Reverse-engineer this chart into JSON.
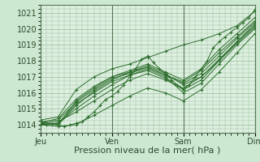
{
  "bg_color": "#cce8d0",
  "plot_bg_color": "#ddf0e0",
  "grid_color": "#99bb99",
  "line_color": "#2d6e2d",
  "marker_color": "#2d6e2d",
  "xlabel": "Pression niveau de la mer( hPa )",
  "xlabel_fontsize": 8,
  "tick_fontsize": 7,
  "xlim": [
    0,
    72
  ],
  "ylim": [
    1013.5,
    1021.5
  ],
  "yticks": [
    1014,
    1015,
    1016,
    1017,
    1018,
    1019,
    1020,
    1021
  ],
  "xtick_labels": [
    "Jeu",
    "Ven",
    "Sam",
    "Dim"
  ],
  "xtick_positions": [
    0,
    24,
    48,
    72
  ],
  "vline_positions": [
    0,
    24,
    48,
    72
  ],
  "series": [
    [
      0,
      1014.1,
      2,
      1014.0,
      4,
      1014.05,
      6,
      1014.0,
      8,
      1013.9,
      10,
      1014.0,
      12,
      1014.1,
      14,
      1014.2,
      16,
      1014.5,
      18,
      1014.8,
      20,
      1015.2,
      22,
      1015.6,
      24,
      1015.8,
      26,
      1016.1,
      28,
      1016.5,
      30,
      1017.0,
      32,
      1017.5,
      34,
      1018.1,
      36,
      1018.3,
      38,
      1017.9,
      40,
      1017.5,
      42,
      1017.2,
      44,
      1016.8,
      46,
      1016.5,
      48,
      1016.2,
      50,
      1016.5,
      52,
      1017.0,
      54,
      1017.5,
      56,
      1018.0,
      58,
      1018.8,
      60,
      1019.2,
      62,
      1019.5,
      64,
      1019.8,
      66,
      1020.1,
      68,
      1020.4,
      70,
      1020.7,
      72,
      1021.2
    ],
    [
      0,
      1014.0,
      6,
      1013.9,
      12,
      1014.0,
      18,
      1014.6,
      24,
      1015.2,
      30,
      1015.8,
      36,
      1016.3,
      42,
      1016.0,
      48,
      1015.5,
      54,
      1016.2,
      60,
      1017.3,
      66,
      1018.5,
      72,
      1019.7
    ],
    [
      0,
      1014.1,
      6,
      1014.2,
      12,
      1014.8,
      18,
      1015.5,
      24,
      1016.2,
      30,
      1016.8,
      36,
      1017.2,
      42,
      1016.8,
      48,
      1016.3,
      54,
      1017.0,
      60,
      1018.0,
      66,
      1019.2,
      72,
      1020.3
    ],
    [
      0,
      1014.0,
      6,
      1014.1,
      12,
      1015.0,
      18,
      1015.8,
      24,
      1016.5,
      30,
      1017.1,
      36,
      1017.5,
      42,
      1017.0,
      48,
      1016.0,
      54,
      1016.6,
      60,
      1017.8,
      66,
      1019.0,
      72,
      1020.0
    ],
    [
      0,
      1014.1,
      6,
      1014.0,
      12,
      1015.2,
      18,
      1016.1,
      24,
      1016.8,
      30,
      1017.3,
      36,
      1017.7,
      42,
      1017.2,
      48,
      1016.5,
      54,
      1017.0,
      60,
      1018.1,
      66,
      1019.2,
      72,
      1020.2
    ],
    [
      0,
      1014.2,
      6,
      1014.3,
      12,
      1015.4,
      18,
      1016.2,
      24,
      1016.9,
      30,
      1017.2,
      36,
      1017.6,
      42,
      1017.1,
      48,
      1016.6,
      54,
      1017.2,
      60,
      1018.3,
      66,
      1019.4,
      72,
      1020.4
    ],
    [
      0,
      1014.0,
      6,
      1014.1,
      12,
      1015.3,
      18,
      1016.0,
      24,
      1016.7,
      30,
      1017.1,
      36,
      1017.4,
      42,
      1016.9,
      48,
      1016.2,
      54,
      1016.8,
      60,
      1018.0,
      66,
      1019.1,
      72,
      1020.1
    ],
    [
      0,
      1014.1,
      6,
      1014.4,
      12,
      1015.6,
      18,
      1016.4,
      24,
      1017.0,
      30,
      1017.3,
      36,
      1017.6,
      42,
      1017.1,
      48,
      1016.7,
      54,
      1017.4,
      60,
      1018.5,
      66,
      1019.5,
      72,
      1020.5
    ],
    [
      0,
      1014.2,
      6,
      1014.0,
      12,
      1015.5,
      18,
      1016.3,
      24,
      1017.0,
      30,
      1017.4,
      36,
      1017.8,
      42,
      1017.3,
      48,
      1016.8,
      54,
      1017.5,
      60,
      1018.7,
      66,
      1019.7,
      72,
      1020.7
    ],
    [
      0,
      1014.3,
      6,
      1014.5,
      12,
      1016.2,
      18,
      1017.0,
      24,
      1017.5,
      30,
      1017.8,
      36,
      1018.2,
      42,
      1018.6,
      48,
      1019.0,
      54,
      1019.3,
      60,
      1019.7,
      66,
      1020.2,
      72,
      1021.1
    ]
  ]
}
